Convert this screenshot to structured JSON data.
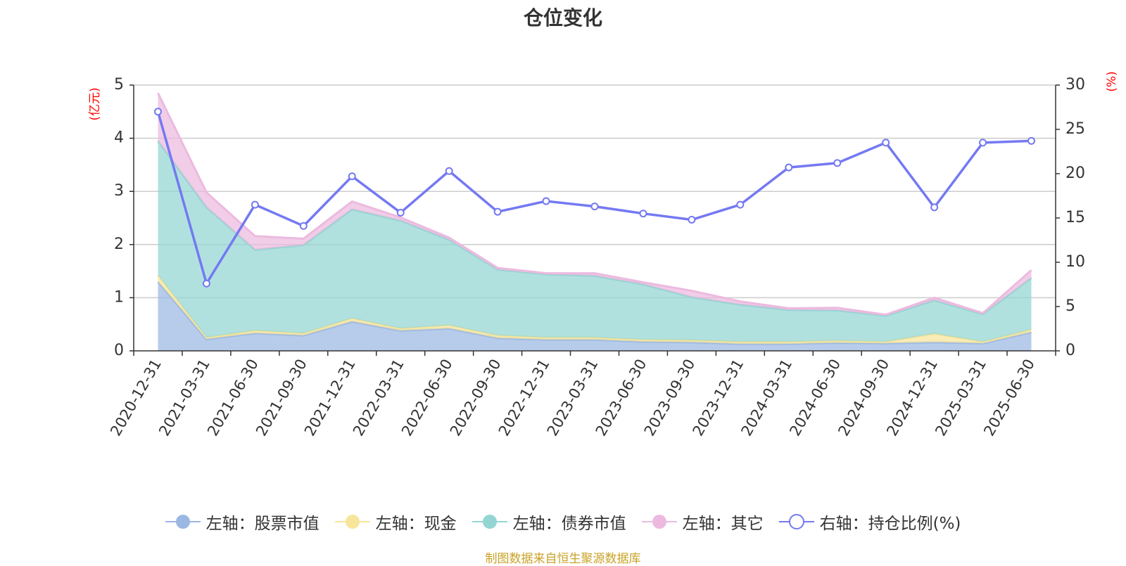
{
  "chart_data": {
    "type": "area",
    "title": "仓位变化",
    "left_axis_unit": "(亿元)",
    "right_axis_unit": "(%)",
    "categories": [
      "2020-12-31",
      "2021-03-31",
      "2021-06-30",
      "2021-09-30",
      "2021-12-31",
      "2022-03-31",
      "2022-06-30",
      "2022-09-30",
      "2022-12-31",
      "2023-03-31",
      "2023-06-30",
      "2023-09-30",
      "2023-12-31",
      "2024-03-31",
      "2024-06-30",
      "2024-09-30",
      "2024-12-31",
      "2025-03-31",
      "2025-06-30"
    ],
    "left_ylim": [
      0,
      5
    ],
    "left_ticks": [
      0,
      1,
      2,
      3,
      4,
      5
    ],
    "right_ylim": [
      0,
      30
    ],
    "right_ticks": [
      0,
      5,
      10,
      15,
      20,
      25,
      30
    ],
    "grid": true,
    "legend_position": "bottom",
    "stacked_series": [
      {
        "name": "左轴：股票市值",
        "color": "#9bb8e3",
        "values": [
          1.3,
          0.22,
          0.33,
          0.29,
          0.55,
          0.38,
          0.42,
          0.24,
          0.21,
          0.21,
          0.17,
          0.16,
          0.13,
          0.13,
          0.15,
          0.14,
          0.16,
          0.14,
          0.35
        ]
      },
      {
        "name": "左轴：现金",
        "color": "#f7e59b",
        "values": [
          0.12,
          0.03,
          0.05,
          0.04,
          0.06,
          0.04,
          0.06,
          0.05,
          0.04,
          0.04,
          0.04,
          0.04,
          0.04,
          0.04,
          0.04,
          0.03,
          0.16,
          0.03,
          0.05
        ]
      },
      {
        "name": "左轴：债券市值",
        "color": "#93d5d3",
        "values": [
          2.53,
          2.45,
          1.52,
          1.66,
          2.05,
          2.03,
          1.61,
          1.24,
          1.19,
          1.16,
          1.04,
          0.81,
          0.7,
          0.6,
          0.57,
          0.49,
          0.63,
          0.52,
          0.97
        ]
      },
      {
        "name": "左轴：其它",
        "color": "#ecbadf",
        "values": [
          0.9,
          0.28,
          0.26,
          0.12,
          0.15,
          0.06,
          0.04,
          0.03,
          0.02,
          0.05,
          0.04,
          0.12,
          0.06,
          0.03,
          0.05,
          0.02,
          0.05,
          0.02,
          0.15
        ]
      }
    ],
    "line_series": {
      "name": "右轴：持仓比例(%)",
      "color": "#7479f2",
      "values": [
        27.0,
        7.6,
        16.5,
        14.1,
        19.7,
        15.6,
        20.3,
        15.7,
        16.9,
        16.3,
        15.5,
        14.8,
        16.5,
        20.7,
        21.2,
        23.5,
        16.2,
        23.5,
        23.7
      ]
    }
  },
  "source_note": "制图数据来自恒生聚源数据库"
}
